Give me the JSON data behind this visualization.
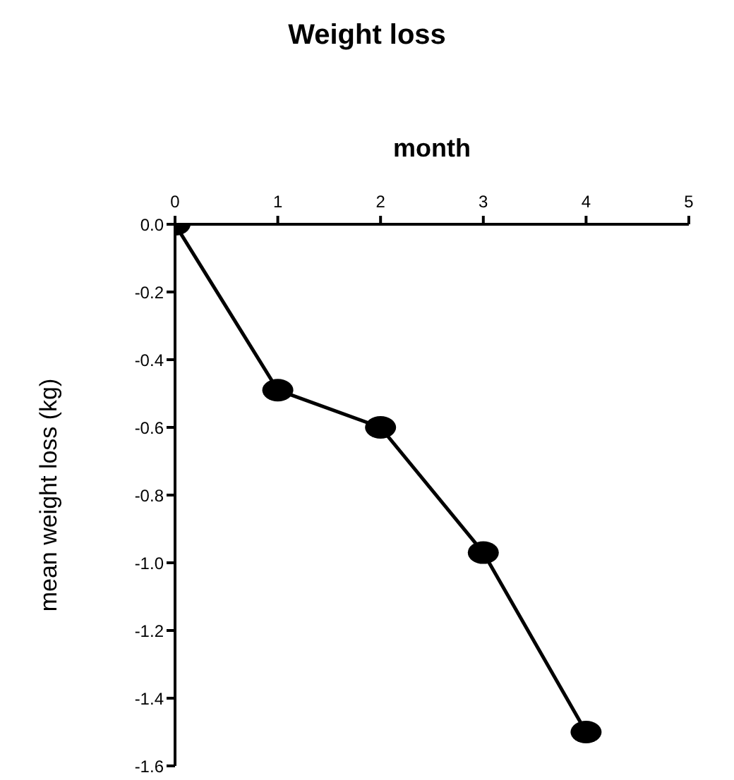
{
  "chart_data": {
    "type": "line",
    "title": "Weight loss",
    "xlabel": "month",
    "ylabel": "mean weight loss (kg)",
    "x": [
      0,
      1,
      2,
      3,
      4
    ],
    "series": [
      {
        "color": "#000000",
        "values": [
          0,
          -0.49,
          -0.6,
          -0.97,
          -1.5
        ]
      }
    ],
    "xlim": [
      0,
      5
    ],
    "xticks": [
      0,
      1,
      2,
      3,
      4,
      5
    ],
    "ylim": [
      -1.6,
      0
    ],
    "yticks": [
      {
        "value": 0,
        "label": "0.0"
      },
      {
        "value": -0.2,
        "label": "-0.2"
      },
      {
        "value": -0.4,
        "label": "-0.4"
      },
      {
        "value": -0.6,
        "label": "-0.6"
      },
      {
        "value": -0.8,
        "label": "-0.8"
      },
      {
        "value": -1,
        "label": "-1.0"
      },
      {
        "value": -1.2,
        "label": "-1.2"
      },
      {
        "value": -1.4,
        "label": "-1.4"
      },
      {
        "value": -1.6,
        "label": "-1.6"
      }
    ],
    "marker": "circle",
    "line_style": "solid",
    "grid": false,
    "legend": false
  }
}
